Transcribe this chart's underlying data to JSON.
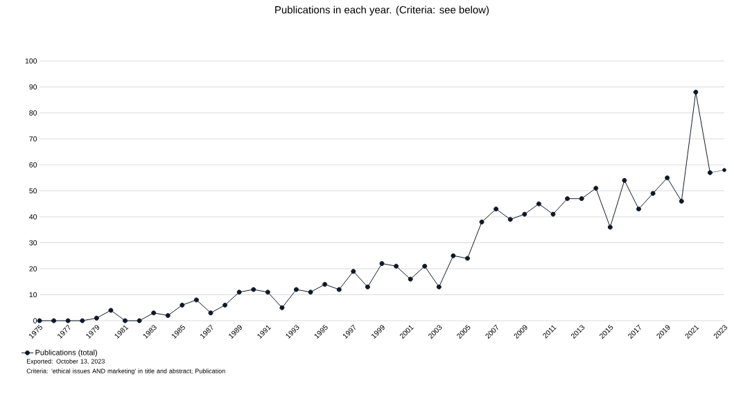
{
  "chart_data": {
    "type": "line",
    "title": "Publications in each year. (Criteria: see below)",
    "x": [
      1975,
      1976,
      1977,
      1978,
      1979,
      1980,
      1981,
      1982,
      1983,
      1984,
      1985,
      1986,
      1987,
      1988,
      1989,
      1990,
      1991,
      1992,
      1993,
      1994,
      1995,
      1996,
      1997,
      1998,
      1999,
      2000,
      2001,
      2002,
      2003,
      2004,
      2005,
      2006,
      2007,
      2008,
      2009,
      2010,
      2011,
      2012,
      2013,
      2014,
      2015,
      2016,
      2017,
      2018,
      2019,
      2020,
      2021,
      2022
    ],
    "series": [
      {
        "name": "Publications (total)",
        "color": "#111827",
        "line_style": "solid",
        "values": [
          0,
          0,
          0,
          0,
          1,
          4,
          0,
          0,
          3,
          2,
          6,
          8,
          3,
          6,
          11,
          12,
          11,
          5,
          12,
          11,
          14,
          12,
          19,
          13,
          22,
          21,
          16,
          21,
          13,
          25,
          24,
          38,
          43,
          39,
          41,
          45,
          41,
          47,
          47,
          51,
          36,
          54,
          43,
          49,
          55,
          46,
          88,
          57
        ]
      },
      {
        "color": "#111827",
        "line_style": "dotted",
        "x": [
          2022,
          2023
        ],
        "values": [
          57,
          58
        ]
      }
    ],
    "xlim": [
      1975,
      2023
    ],
    "xticks": [
      1975,
      1977,
      1979,
      1981,
      1983,
      1985,
      1987,
      1989,
      1991,
      1993,
      1995,
      1997,
      1999,
      2001,
      2003,
      2005,
      2007,
      2009,
      2011,
      2013,
      2015,
      2017,
      2019,
      2021,
      2023
    ],
    "ylim": [
      0,
      100
    ],
    "yticks": [
      0,
      10,
      20,
      30,
      40,
      50,
      60,
      70,
      80,
      90,
      100
    ],
    "grid": "y",
    "legend": "bottom",
    "marker": "circle",
    "annotations": [
      "Exported: October 13, 2023",
      "Criteria: 'ethical issues AND marketing' in title and abstract; Publication"
    ]
  }
}
